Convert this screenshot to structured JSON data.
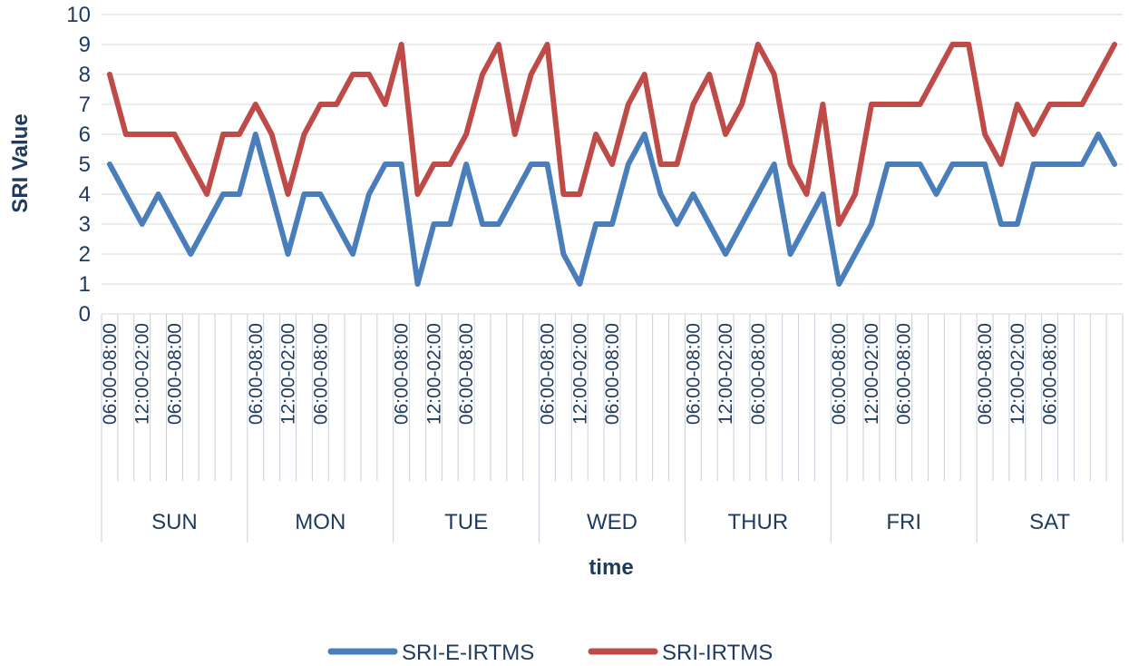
{
  "chart_data": {
    "type": "line",
    "title": "",
    "xlabel": "time",
    "ylabel": "SRI Value",
    "ylim": [
      0,
      10
    ],
    "yticks": [
      0,
      1,
      2,
      3,
      4,
      5,
      6,
      7,
      8,
      9,
      10
    ],
    "grid": true,
    "legend_position": "bottom",
    "days": [
      "SUN",
      "MON",
      "TUE",
      "WED",
      "THUR",
      "FRI",
      "SAT"
    ],
    "time_slot_labels": [
      "06:00-08:00",
      "12:00-02:00",
      "06:00-08:00"
    ],
    "slots_per_day": 9,
    "series": [
      {
        "name": "SRI-E-IRTMS",
        "color": "#4a7ebb",
        "values": [
          5,
          4,
          3,
          4,
          3,
          2,
          3,
          4,
          4,
          6,
          4,
          2,
          4,
          4,
          3,
          2,
          4,
          5,
          5,
          1,
          3,
          3,
          5,
          3,
          3,
          4,
          5,
          5,
          2,
          1,
          3,
          3,
          5,
          6,
          4,
          3,
          4,
          3,
          2,
          3,
          4,
          5,
          2,
          3,
          4,
          1,
          2,
          3,
          5,
          5,
          5,
          4,
          5,
          5,
          5,
          3,
          3,
          5,
          5,
          5,
          5,
          6,
          5
        ]
      },
      {
        "name": "SRI-IRTMS",
        "color": "#be4b48",
        "values": [
          8,
          6,
          6,
          6,
          6,
          5,
          4,
          6,
          6,
          7,
          6,
          4,
          6,
          7,
          7,
          8,
          8,
          7,
          9,
          4,
          5,
          5,
          6,
          8,
          9,
          6,
          8,
          9,
          4,
          4,
          6,
          5,
          7,
          8,
          5,
          5,
          7,
          8,
          6,
          7,
          9,
          8,
          5,
          4,
          7,
          3,
          4,
          7,
          7,
          7,
          7,
          8,
          9,
          9,
          6,
          5,
          7,
          6,
          7,
          7,
          7,
          8,
          9
        ]
      }
    ]
  }
}
